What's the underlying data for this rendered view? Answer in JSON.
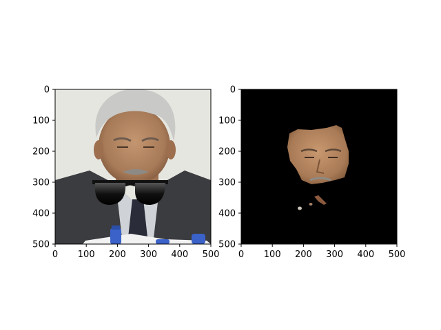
{
  "chart_data": [
    {
      "type": "image",
      "panel": "left",
      "content": "photo of a gray-haired man in a dark suit and tie reading papers, with cartoon sunglasses overlaid below his face",
      "xlim": [
        0,
        500
      ],
      "ylim": [
        500,
        0
      ],
      "xticks": [
        0,
        100,
        200,
        300,
        400,
        500
      ],
      "yticks": [
        0,
        100,
        200,
        300,
        400,
        500
      ],
      "xtick_labels": [
        "0",
        "100",
        "200",
        "300",
        "400",
        "500"
      ],
      "ytick_labels": [
        "0",
        "100",
        "200",
        "300",
        "400",
        "500"
      ]
    },
    {
      "type": "image",
      "panel": "right",
      "content": "segmentation mask result: black background with only the man's face region visible plus small scattered fragments",
      "xlim": [
        0,
        500
      ],
      "ylim": [
        500,
        0
      ],
      "xticks": [
        0,
        100,
        200,
        300,
        400,
        500
      ],
      "yticks": [
        0,
        100,
        200,
        300,
        400,
        500
      ],
      "xtick_labels": [
        "0",
        "100",
        "200",
        "300",
        "400",
        "500"
      ],
      "ytick_labels": [
        "0",
        "100",
        "200",
        "300",
        "400",
        "500"
      ]
    }
  ],
  "colors": {
    "mask_background": "#000000",
    "skin": "#b78a66",
    "hair": "#c9c9c7",
    "suit": "#3b3c40",
    "photo_background": "#e6e6e0"
  }
}
